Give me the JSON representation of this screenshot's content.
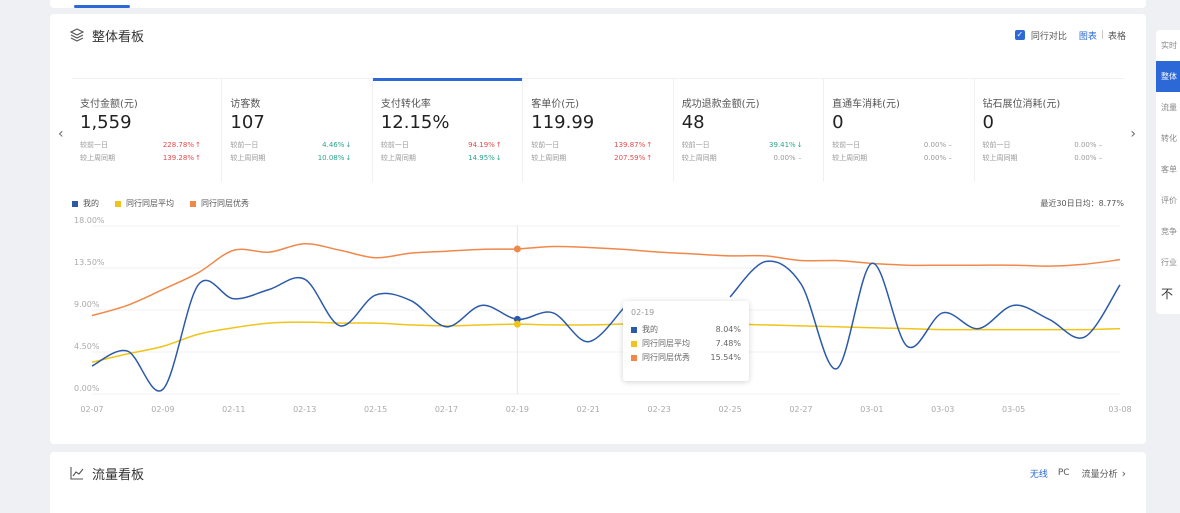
{
  "overview": {
    "title": "整体看板",
    "compare_label": "同行对比",
    "view_chart": "图表",
    "view_table": "表格",
    "metrics": [
      {
        "label": "支付金额(元)",
        "value": "1,559",
        "r1_label": "较前一日",
        "r1_value": "228.78%",
        "r1_dir": "up",
        "r2_label": "较上周同期",
        "r2_value": "139.28%",
        "r2_dir": "up"
      },
      {
        "label": "访客数",
        "value": "107",
        "r1_label": "较前一日",
        "r1_value": "4.46%",
        "r1_dir": "down",
        "r2_label": "较上周同期",
        "r2_value": "10.08%",
        "r2_dir": "down"
      },
      {
        "label": "支付转化率",
        "value": "12.15%",
        "r1_label": "较前一日",
        "r1_value": "94.19%",
        "r1_dir": "up",
        "r2_label": "较上周同期",
        "r2_value": "14.95%",
        "r2_dir": "down"
      },
      {
        "label": "客单价(元)",
        "value": "119.99",
        "r1_label": "较前一日",
        "r1_value": "139.87%",
        "r1_dir": "up",
        "r2_label": "较上周同期",
        "r2_value": "207.59%",
        "r2_dir": "up"
      },
      {
        "label": "成功退款金额(元)",
        "value": "48",
        "r1_label": "较前一日",
        "r1_value": "39.41%",
        "r1_dir": "down",
        "r2_label": "较上周同期",
        "r2_value": "0.00%",
        "r2_dir": "flat"
      },
      {
        "label": "直通车消耗(元)",
        "value": "0",
        "r1_label": "较前一日",
        "r1_value": "0.00%",
        "r1_dir": "flat",
        "r2_label": "较上周同期",
        "r2_value": "0.00%",
        "r2_dir": "flat"
      },
      {
        "label": "钻石展位消耗(元)",
        "value": "0",
        "r1_label": "较前一日",
        "r1_value": "0.00%",
        "r1_dir": "flat",
        "r2_label": "较上周同期",
        "r2_value": "0.00%",
        "r2_dir": "flat"
      }
    ],
    "legend": [
      "我的",
      "同行同层平均",
      "同行同层优秀"
    ],
    "avg_note": "最近30日日均：8.77%",
    "tooltip": {
      "date": "02-19",
      "rows": [
        {
          "name": "我的",
          "value": "8.04%"
        },
        {
          "name": "同行同层平均",
          "value": "7.48%"
        },
        {
          "name": "同行同层优秀",
          "value": "15.54%"
        }
      ]
    }
  },
  "colors": {
    "mine": "#2b5aa8",
    "average": "#f0c419",
    "excellent": "#f0884a",
    "accent": "#2c68d6"
  },
  "chart_data": {
    "type": "line",
    "x": [
      "02-07",
      "02-08",
      "02-09",
      "02-10",
      "02-11",
      "02-12",
      "02-13",
      "02-14",
      "02-15",
      "02-16",
      "02-17",
      "02-18",
      "02-19",
      "02-20",
      "02-21",
      "02-22",
      "02-23",
      "02-24",
      "02-25",
      "02-26",
      "02-27",
      "02-28",
      "03-01",
      "03-02",
      "03-03",
      "03-04",
      "03-05",
      "03-06",
      "03-07",
      "03-08"
    ],
    "x_tick_labels": [
      "02-07",
      "02-09",
      "02-11",
      "02-13",
      "02-15",
      "02-17",
      "02-19",
      "02-21",
      "02-23",
      "02-25",
      "02-27",
      "03-01",
      "03-03",
      "03-05",
      "03-08"
    ],
    "y_tick_labels": [
      "0.00%",
      "4.50%",
      "9.00%",
      "13.50%",
      "18.00%"
    ],
    "ylim": [
      0,
      18
    ],
    "series": [
      {
        "name": "我的",
        "values": [
          3.0,
          4.6,
          0.5,
          11.7,
          10.2,
          11.2,
          12.3,
          7.3,
          10.6,
          10.0,
          7.2,
          9.5,
          8.0,
          8.7,
          5.6,
          9.2,
          null,
          null,
          10.4,
          14.2,
          11.8,
          2.7,
          14.0,
          5.1,
          8.7,
          7.0,
          9.5,
          8.0,
          6.1,
          11.7
        ]
      },
      {
        "name": "同行同层平均",
        "values": [
          3.4,
          4.3,
          5.1,
          6.4,
          7.1,
          7.6,
          7.7,
          7.6,
          7.6,
          7.4,
          7.3,
          7.4,
          7.48,
          7.4,
          7.4,
          7.5,
          7.6,
          7.5,
          7.5,
          7.4,
          7.3,
          7.2,
          7.1,
          7.0,
          6.9,
          6.9,
          6.9,
          6.9,
          6.9,
          7.0
        ]
      },
      {
        "name": "同行同层优秀",
        "values": [
          8.4,
          9.5,
          11.2,
          13.0,
          15.4,
          15.2,
          16.1,
          15.4,
          14.6,
          15.1,
          15.3,
          15.5,
          15.54,
          15.8,
          15.7,
          15.5,
          15.2,
          15.0,
          14.8,
          14.8,
          14.3,
          14.3,
          14.0,
          13.8,
          13.8,
          13.8,
          13.8,
          13.7,
          13.9,
          14.4
        ]
      }
    ],
    "legend_position": "top-left",
    "grid": true
  },
  "traffic": {
    "title": "流量看板",
    "link_wireless": "无线",
    "link_pc": "PC",
    "link_analysis": "流量分析"
  },
  "right_panel": {
    "items": [
      "实时",
      "整体",
      "流量",
      "转化",
      "客单",
      "评价",
      "竞争",
      "行业",
      "不"
    ]
  }
}
